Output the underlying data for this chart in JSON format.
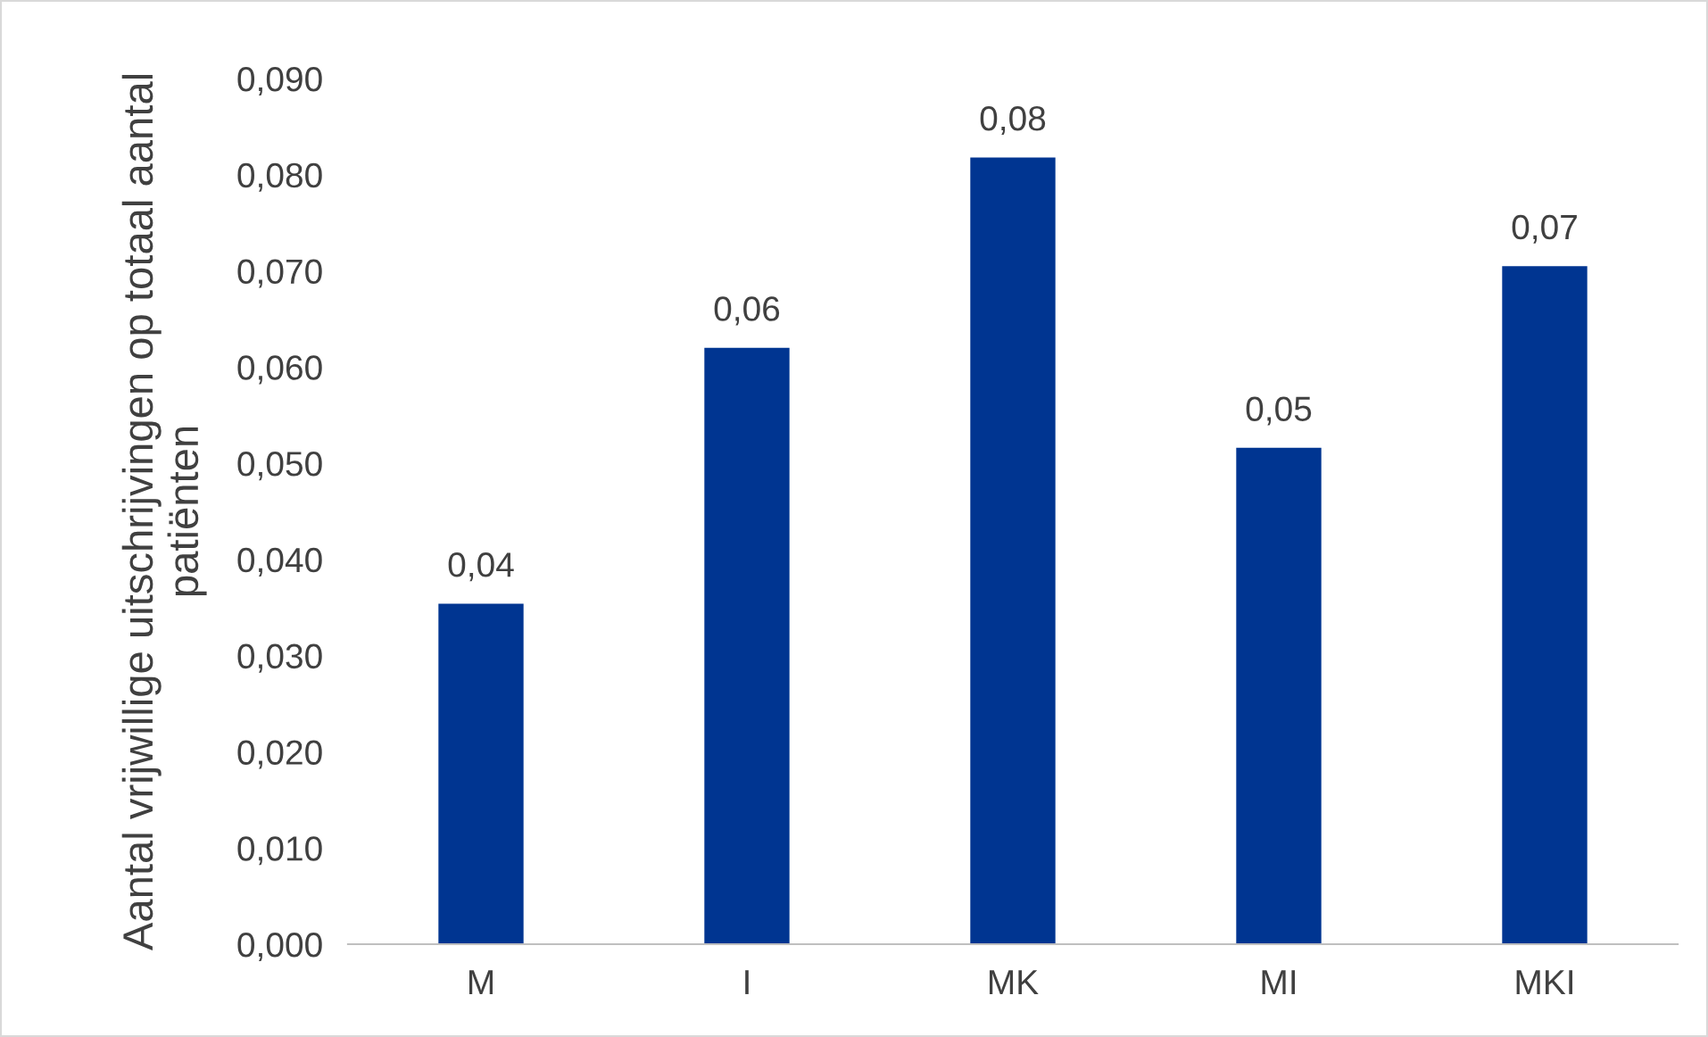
{
  "chart_data": {
    "type": "bar",
    "ylabel": "Aantal vrijwillige uitschrijvingen op totaal aantal patiënten",
    "categories": [
      "M",
      "I",
      "MK",
      "MI",
      "MKI"
    ],
    "values": [
      0.0354,
      0.062,
      0.0818,
      0.0516,
      0.0705
    ],
    "value_labels": [
      "0,04",
      "0,06",
      "0,08",
      "0,05",
      "0,07"
    ],
    "color": "#003591",
    "ylim": [
      0,
      0.09
    ],
    "yticks": [
      {
        "value": 0,
        "label": "0,000"
      },
      {
        "value": 0.01,
        "label": "0,010"
      },
      {
        "value": 0.02,
        "label": "0,020"
      },
      {
        "value": 0.03,
        "label": "0,030"
      },
      {
        "value": 0.04,
        "label": "0,040"
      },
      {
        "value": 0.05,
        "label": "0,050"
      },
      {
        "value": 0.06,
        "label": "0,060"
      },
      {
        "value": 0.07,
        "label": "0,070"
      },
      {
        "value": 0.08,
        "label": "0,080"
      },
      {
        "value": 0.09,
        "label": "0,090"
      }
    ],
    "grid": false,
    "legend": false
  }
}
